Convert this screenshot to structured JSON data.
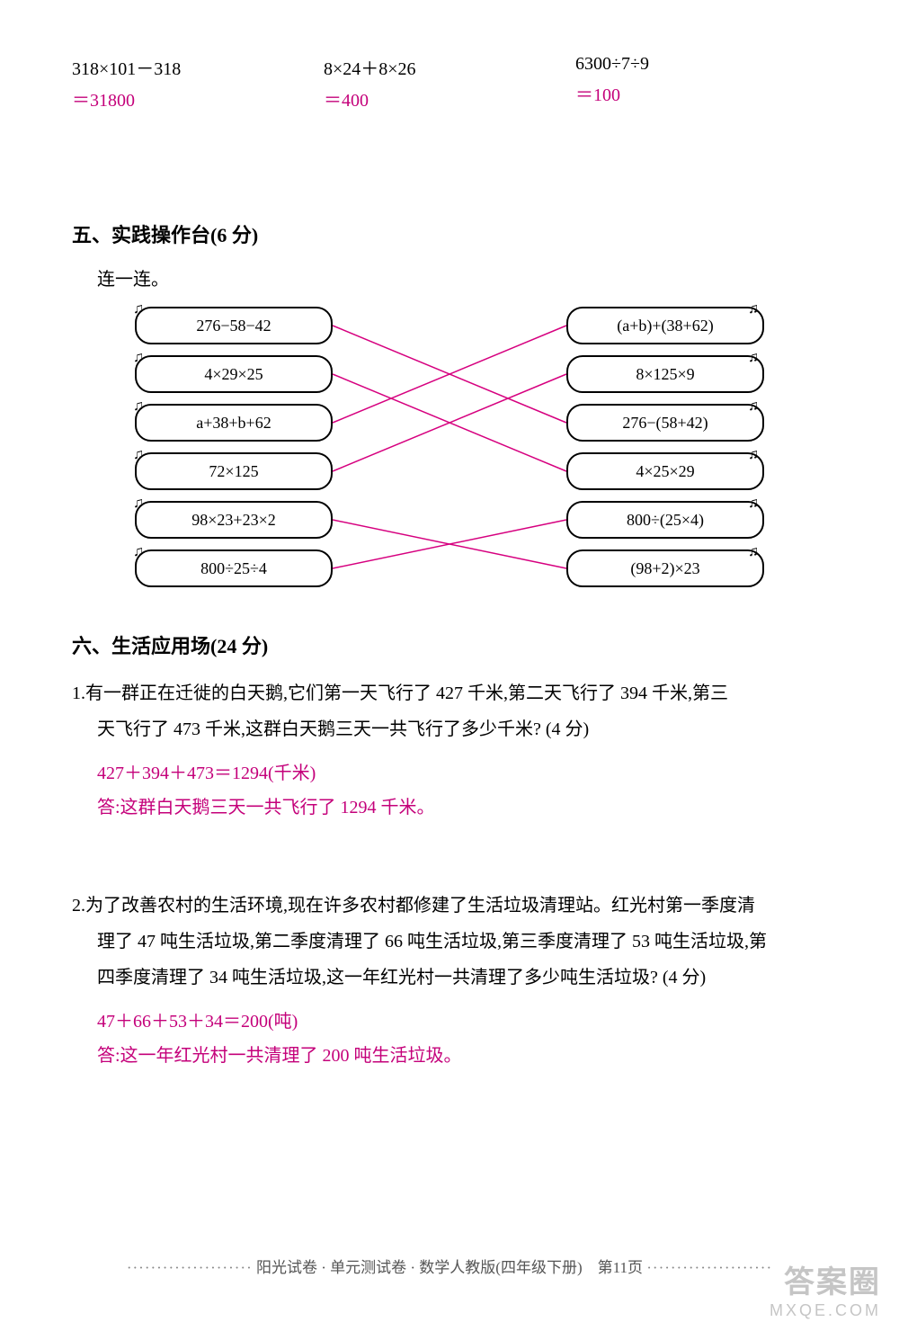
{
  "calc": {
    "rows": [
      {
        "expr": "318×101－318",
        "ans": "＝31800"
      },
      {
        "expr": "8×24＋8×26",
        "ans": "＝400"
      },
      {
        "expr": "6300÷7÷9",
        "ans": "＝100"
      }
    ]
  },
  "section5": {
    "title": "五、实践操作台(6 分)",
    "sub": "连一连。",
    "left": [
      "276−58−42",
      "4×29×25",
      "a+38+b+62",
      "72×125",
      "98×23+23×2",
      "800÷25÷4"
    ],
    "right": [
      "(a+b)+(38+62)",
      "8×125×9",
      "276−(58+42)",
      "4×25×29",
      "800÷(25×4)",
      "(98+2)×23"
    ],
    "bubbleW": 220,
    "bubbleH": 42,
    "gap": 12,
    "areaW": 700,
    "lineColor": "#d6007f",
    "lineWidth": 1.5,
    "connections": [
      {
        "from": 0,
        "to": 2
      },
      {
        "from": 1,
        "to": 3
      },
      {
        "from": 2,
        "to": 0
      },
      {
        "from": 3,
        "to": 1
      },
      {
        "from": 4,
        "to": 5
      },
      {
        "from": 5,
        "to": 4
      }
    ]
  },
  "section6": {
    "title": "六、生活应用场(24 分)",
    "problems": [
      {
        "num": "1.",
        "text_l1": "有一群正在迁徙的白天鹅,它们第一天飞行了 427 千米,第二天飞行了 394 千米,第三",
        "text_l2": "天飞行了 473 千米,这群白天鹅三天一共飞行了多少千米? (4 分)",
        "work": "427＋394＋473＝1294(千米)",
        "ans": "答:这群白天鹅三天一共飞行了 1294 千米。"
      },
      {
        "num": "2.",
        "text_l1": "为了改善农村的生活环境,现在许多农村都修建了生活垃圾清理站。红光村第一季度清",
        "text_l2": "理了 47 吨生活垃圾,第二季度清理了 66 吨生活垃圾,第三季度清理了 53 吨生活垃圾,第",
        "text_l3": "四季度清理了 34 吨生活垃圾,这一年红光村一共清理了多少吨生活垃圾? (4 分)",
        "work": "47＋66＋53＋34＝200(吨)",
        "ans": "答:这一年红光村一共清理了 200 吨生活垃圾。"
      }
    ]
  },
  "footer": {
    "dots": "·····················",
    "text": "阳光试卷 · 单元测试卷 · 数学人教版(四年级下册)　第11页"
  },
  "watermark": {
    "top": "答案圈",
    "bot": "MXQE.COM"
  },
  "colors": {
    "ansColor": "#c4007a",
    "textColor": "#000000"
  }
}
